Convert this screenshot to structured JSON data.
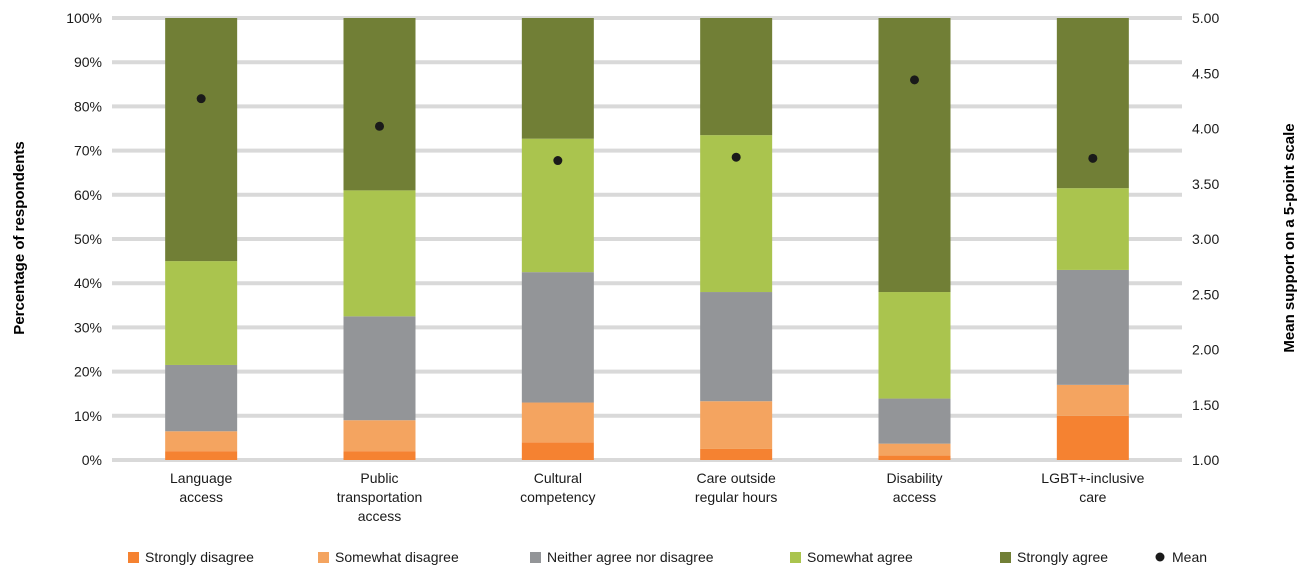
{
  "chart_data": {
    "type": "bar",
    "stacked": true,
    "categories": [
      "Language access",
      "Public transportation access",
      "Cultural competency",
      "Care outside regular hours",
      "Disability access",
      "LGBT+-inclusive care"
    ],
    "category_lines": [
      [
        "Language",
        "access"
      ],
      [
        "Public",
        "transportation",
        "access"
      ],
      [
        "Cultural",
        "competency"
      ],
      [
        "Care outside",
        "regular hours"
      ],
      [
        "Disability",
        "access"
      ],
      [
        "LGBT+-inclusive",
        "care"
      ]
    ],
    "series": [
      {
        "name": "Strongly disagree",
        "color": "#f58231",
        "values": [
          2,
          2,
          4,
          2.5,
          1,
          10
        ]
      },
      {
        "name": "Somewhat disagree",
        "color": "#f4a460",
        "values": [
          4.5,
          7,
          9,
          10.8,
          2.7,
          7
        ]
      },
      {
        "name": "Neither agree nor disagree",
        "color": "#939598",
        "values": [
          15,
          23.5,
          29.5,
          24.7,
          10.2,
          26
        ]
      },
      {
        "name": "Somewhat agree",
        "color": "#aac44e",
        "values": [
          23.5,
          28.5,
          30.2,
          35.5,
          24.1,
          18.5
        ]
      },
      {
        "name": "Strongly agree",
        "color": "#717f36",
        "values": [
          55,
          39,
          27.3,
          26.5,
          62,
          38.5
        ]
      }
    ],
    "mean": {
      "name": "Mean",
      "color": "#1a1a1a",
      "values": [
        4.27,
        4.02,
        3.71,
        3.74,
        4.44,
        3.73
      ]
    },
    "ylabel": "Percentage of respondents",
    "y2label": "Mean support on a 5-point scale",
    "ylim": [
      0,
      100
    ],
    "y2lim": [
      1.0,
      5.0
    ],
    "yticks": [
      "0%",
      "10%",
      "20%",
      "30%",
      "40%",
      "50%",
      "60%",
      "70%",
      "80%",
      "90%",
      "100%"
    ],
    "y2ticks": [
      "1.00",
      "1.50",
      "2.00",
      "2.50",
      "3.00",
      "3.50",
      "4.00",
      "4.50",
      "5.00"
    ],
    "grid": true,
    "legend_position": "bottom"
  }
}
